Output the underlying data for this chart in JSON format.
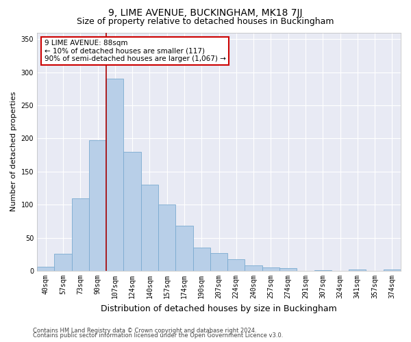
{
  "title1": "9, LIME AVENUE, BUCKINGHAM, MK18 7JJ",
  "title2": "Size of property relative to detached houses in Buckingham",
  "xlabel": "Distribution of detached houses by size in Buckingham",
  "ylabel": "Number of detached properties",
  "footer1": "Contains HM Land Registry data © Crown copyright and database right 2024.",
  "footer2": "Contains public sector information licensed under the Open Government Licence v3.0.",
  "categories": [
    "40sqm",
    "57sqm",
    "73sqm",
    "90sqm",
    "107sqm",
    "124sqm",
    "140sqm",
    "157sqm",
    "174sqm",
    "190sqm",
    "207sqm",
    "224sqm",
    "240sqm",
    "257sqm",
    "274sqm",
    "291sqm",
    "307sqm",
    "324sqm",
    "341sqm",
    "357sqm",
    "374sqm"
  ],
  "values": [
    6,
    26,
    110,
    197,
    290,
    180,
    130,
    100,
    68,
    35,
    27,
    18,
    8,
    5,
    4,
    0,
    1,
    0,
    2,
    0,
    2
  ],
  "bar_color": "#b8cfe8",
  "bar_edge_color": "#7aaad0",
  "bg_color": "#e8eaf4",
  "grid_color": "#ffffff",
  "vline_x": 3.5,
  "vline_color": "#aa0000",
  "annotation_title": "9 LIME AVENUE: 88sqm",
  "annotation_line1": "← 10% of detached houses are smaller (117)",
  "annotation_line2": "90% of semi-detached houses are larger (1,067) →",
  "annotation_box_color": "#cc0000",
  "ylim": [
    0,
    360
  ],
  "yticks": [
    0,
    50,
    100,
    150,
    200,
    250,
    300,
    350
  ],
  "title1_fontsize": 10,
  "title2_fontsize": 9,
  "xlabel_fontsize": 9,
  "ylabel_fontsize": 8,
  "tick_fontsize": 7,
  "footer_fontsize": 6,
  "annot_fontsize": 7.5
}
